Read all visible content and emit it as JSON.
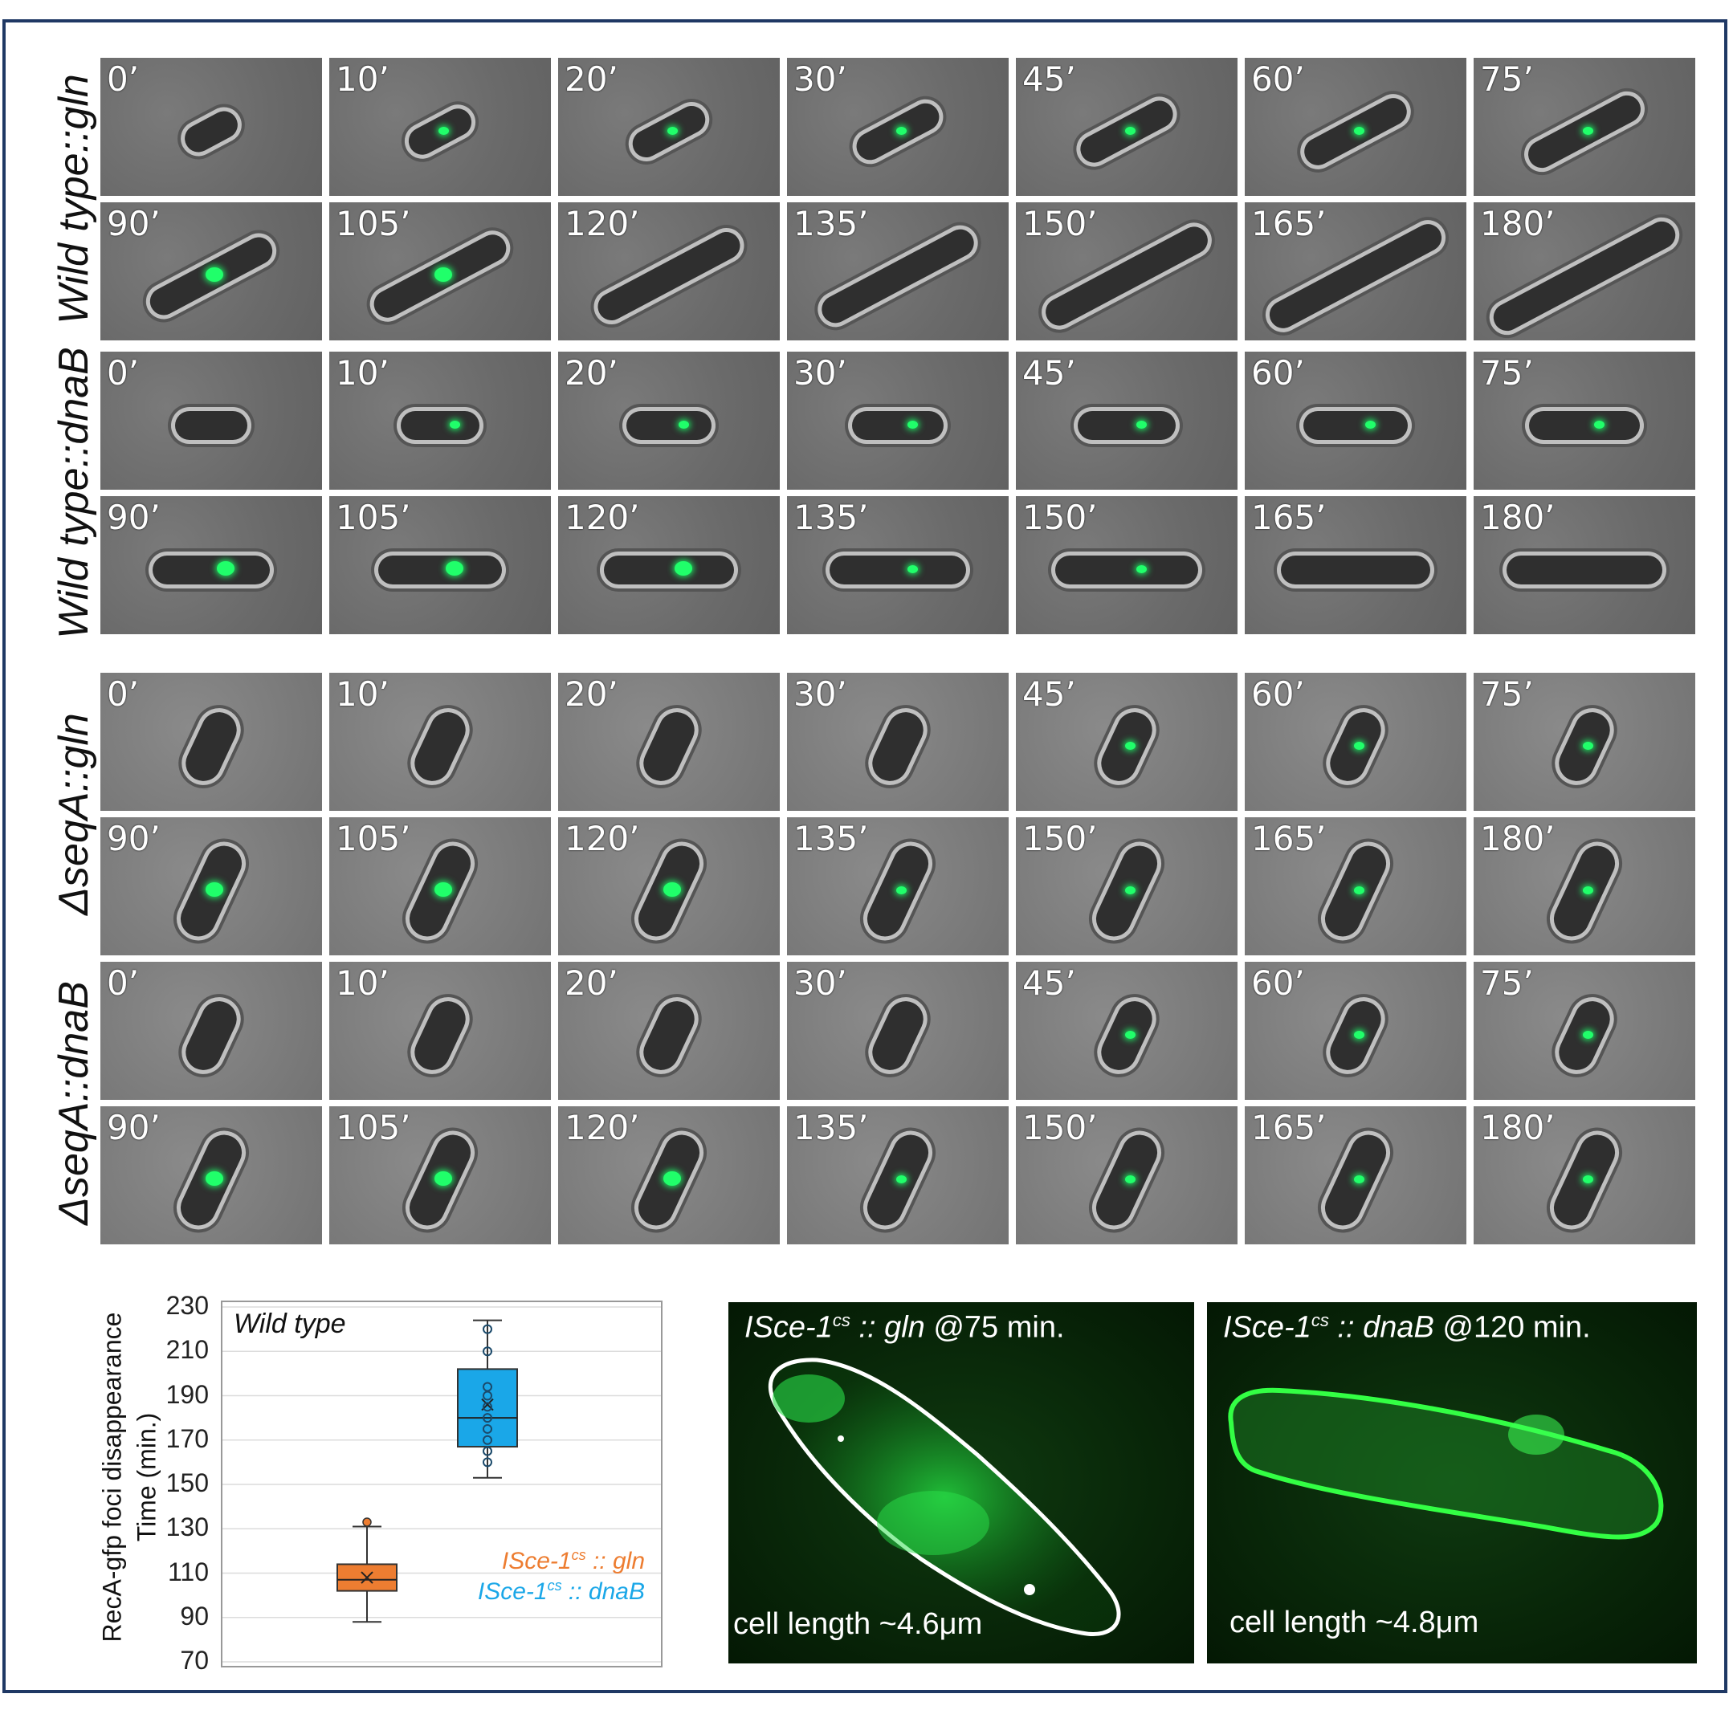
{
  "row_labels": [
    "Wild type::gln",
    "Wild type::dnaB",
    "ΔseqA::gln",
    "ΔseqA::dnaB"
  ],
  "time_labels": [
    "0’",
    "10’",
    "20’",
    "30’",
    "45’",
    "60’",
    "75’",
    "90’",
    "105’",
    "120’",
    "135’",
    "150’",
    "165’",
    "180’"
  ],
  "chart": {
    "annotation": "Wild type",
    "ylabel_line1": "RecA-gfp foci disappearance",
    "ylabel_line2": "Time (min.)",
    "legend_gln": "ISce-1cs :: gln",
    "legend_dnab": "ISce-1cs :: dnaB",
    "colors": {
      "gln": "#ed7d31",
      "dnab": "#1aa7e8"
    }
  },
  "chart_data": {
    "type": "box",
    "title": "Wild type",
    "ylabel": "RecA-gfp foci disappearance Time (min.)",
    "ylim": [
      70,
      230
    ],
    "yticks": [
      70,
      90,
      110,
      130,
      150,
      170,
      190,
      210,
      230
    ],
    "series": [
      {
        "name": "ISce-1cs :: gln",
        "min": 88,
        "q1": 102,
        "median": 107,
        "mean": 108,
        "q3": 114,
        "max": 131,
        "outliers": [
          133
        ]
      },
      {
        "name": "ISce-1cs :: dnaB",
        "min": 153,
        "q1": 167,
        "median": 180,
        "mean": 186,
        "q3": 202,
        "max": 224,
        "points": [
          160,
          165,
          170,
          175,
          180,
          185,
          190,
          194,
          210,
          220
        ]
      }
    ]
  },
  "micrographs": [
    {
      "title_strain": "ISce-1",
      "title_sup": "cs",
      "title_gene": ":: gln",
      "title_time": "@75 min.",
      "footer": "cell length ~4.6μm"
    },
    {
      "title_strain": "ISce-1",
      "title_sup": "cs",
      "title_gene": ":: dnaB",
      "title_time": "@120 min.",
      "footer": "cell length ~4.8μm"
    }
  ]
}
